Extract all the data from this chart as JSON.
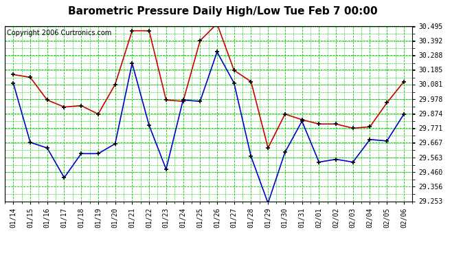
{
  "title": "Barometric Pressure Daily High/Low Tue Feb 7 00:00",
  "copyright": "Copyright 2006 Curtronics.com",
  "dates": [
    "01/14",
    "01/15",
    "01/16",
    "01/17",
    "01/18",
    "01/19",
    "01/20",
    "01/21",
    "01/22",
    "01/23",
    "01/24",
    "01/25",
    "01/26",
    "01/27",
    "01/28",
    "01/29",
    "01/30",
    "01/31",
    "02/01",
    "02/02",
    "02/03",
    "02/04",
    "02/05",
    "02/06"
  ],
  "high_values": [
    30.15,
    30.13,
    29.97,
    29.92,
    29.93,
    29.87,
    30.08,
    30.46,
    30.46,
    29.97,
    29.96,
    30.39,
    30.51,
    30.18,
    30.1,
    29.63,
    29.87,
    29.83,
    29.8,
    29.8,
    29.77,
    29.78,
    29.95,
    30.1
  ],
  "low_values": [
    30.09,
    29.67,
    29.63,
    29.42,
    29.59,
    29.59,
    29.66,
    30.23,
    29.79,
    29.48,
    29.97,
    29.96,
    30.31,
    30.09,
    29.57,
    29.24,
    29.6,
    29.82,
    29.53,
    29.55,
    29.53,
    29.69,
    29.68,
    29.87
  ],
  "high_color": "#cc0000",
  "low_color": "#0000cc",
  "marker": "+",
  "marker_color": "#000000",
  "marker_size": 5,
  "ylim_min": 29.253,
  "ylim_max": 30.495,
  "yticks": [
    29.253,
    29.356,
    29.46,
    29.563,
    29.667,
    29.771,
    29.874,
    29.978,
    30.081,
    30.185,
    30.288,
    30.392,
    30.495
  ],
  "bg_color": "#ffffff",
  "plot_bg_color": "#ffffff",
  "grid_color": "#00cc00",
  "title_fontsize": 11,
  "copyright_fontsize": 7,
  "tick_fontsize": 7,
  "linewidth": 1.2
}
